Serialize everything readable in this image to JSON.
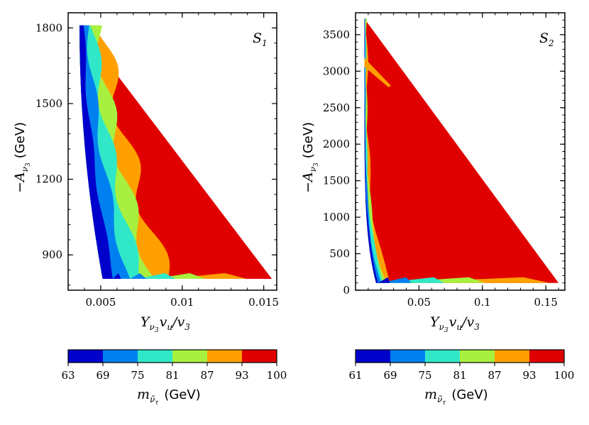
{
  "chart_data": [
    {
      "type": "contour",
      "panel_label": "S",
      "panel_label_subscript": "1",
      "xlabel": {
        "main": "Y",
        "sub": "ν",
        "subsub": "3",
        "rest": "v",
        "rest_sub": "u",
        "slash": "/v",
        "slash_sub": "3"
      },
      "ylabel": {
        "main": "−A",
        "sub": "ν",
        "subsub": "3",
        "unit": "(GeV)"
      },
      "xlim": [
        0.003,
        0.0158
      ],
      "ylim": [
        760,
        1860
      ],
      "xticks": [
        0.005,
        0.01,
        0.015
      ],
      "xtick_labels": [
        "0.005",
        "0.01",
        "0.015"
      ],
      "yticks": [
        900,
        1200,
        1500,
        1800
      ],
      "ytick_labels": [
        "900",
        "1200",
        "1500",
        "1800"
      ],
      "region_top_left": [
        0.0037,
        1810
      ],
      "region_bottom_right": [
        0.0155,
        805
      ],
      "colorbar": {
        "levels": [
          63,
          69,
          75,
          81,
          87,
          93,
          100
        ],
        "tick_labels": [
          "63",
          "69",
          "75",
          "81",
          "87",
          "93",
          "100"
        ],
        "label": "m",
        "label_sub": "ν̃",
        "label_subsub": "τ",
        "unit": "(GeV)"
      }
    },
    {
      "type": "contour",
      "panel_label": "S",
      "panel_label_subscript": "2",
      "xlabel": {
        "main": "Y",
        "sub": "ν",
        "subsub": "3",
        "rest": "v",
        "rest_sub": "u",
        "slash": "/v",
        "slash_sub": "3"
      },
      "ylabel": {
        "main": "−A",
        "sub": "ν",
        "subsub": "3",
        "unit": "(GeV)"
      },
      "xlim": [
        0.0,
        0.165
      ],
      "ylim": [
        0,
        3800
      ],
      "xticks": [
        0.05,
        0.1,
        0.15
      ],
      "xtick_labels": [
        "0.05",
        "0.1",
        "0.15"
      ],
      "yticks": [
        0,
        500,
        1000,
        1500,
        2000,
        2500,
        3000,
        3500
      ],
      "ytick_labels": [
        "0",
        "500",
        "1000",
        "1500",
        "2000",
        "2500",
        "3000",
        "3500"
      ],
      "region_top_left": [
        0.007,
        3720
      ],
      "region_bottom_right": [
        0.16,
        100
      ],
      "colorbar": {
        "levels": [
          61,
          69,
          75,
          81,
          87,
          93,
          100
        ],
        "tick_labels": [
          "61",
          "69",
          "75",
          "81",
          "87",
          "93",
          "100"
        ],
        "label": "m",
        "label_sub": "ν̃",
        "label_subsub": "τ",
        "unit": "(GeV)"
      }
    }
  ],
  "colors": {
    "levels": [
      "#0000cc",
      "#0080f0",
      "#30e8c8",
      "#a8f040",
      "#ffa000",
      "#e00000"
    ],
    "axis": "#000000"
  }
}
